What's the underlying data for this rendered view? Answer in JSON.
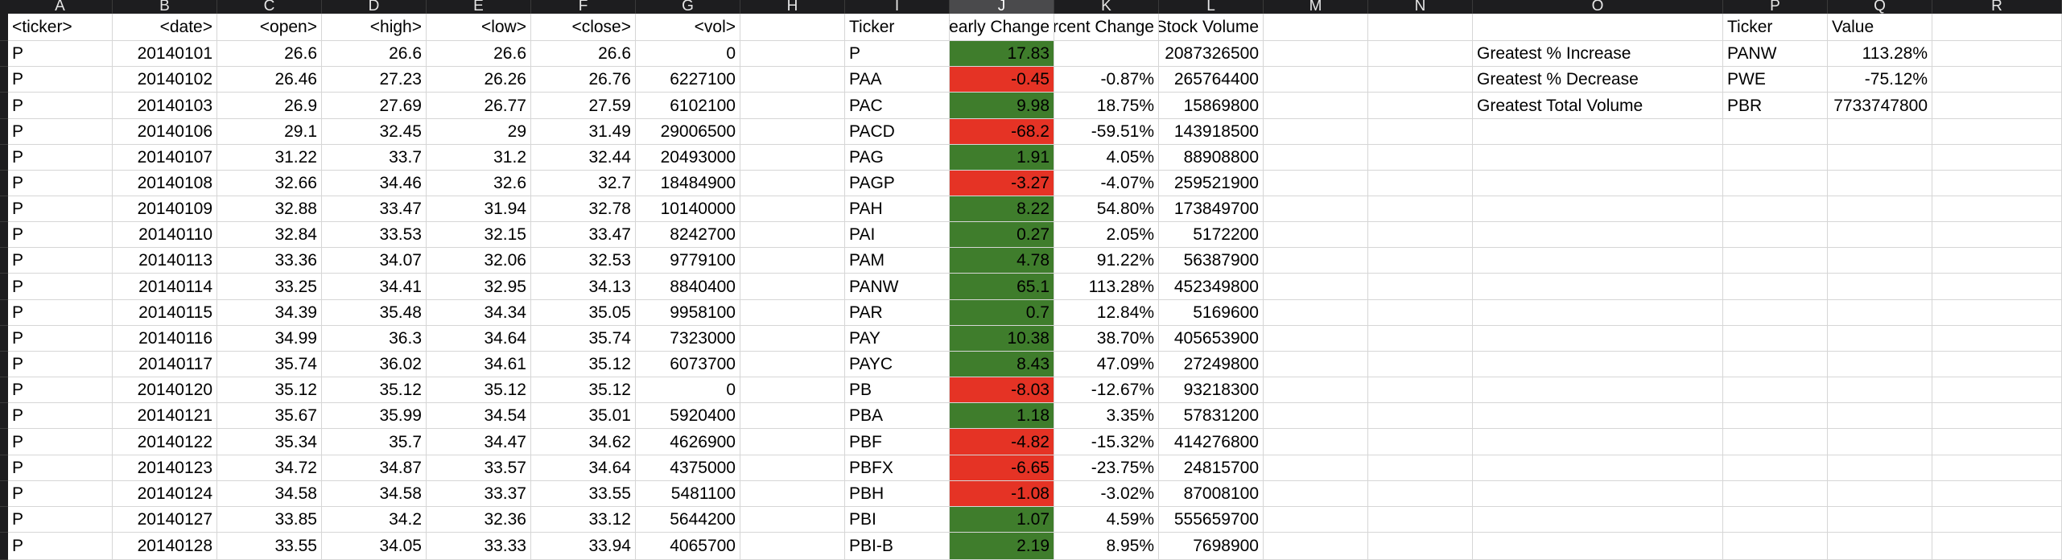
{
  "columns": [
    "A",
    "B",
    "C",
    "D",
    "E",
    "F",
    "G",
    "H",
    "I",
    "J",
    "K",
    "L",
    "M",
    "N",
    "O",
    "P",
    "Q",
    "R"
  ],
  "selected_column": "J",
  "raw_headers": [
    "<ticker>",
    "<date>",
    "<open>",
    "<high>",
    "<low>",
    "<close>",
    "<vol>"
  ],
  "raw_rows": [
    [
      "P",
      "20140101",
      "26.6",
      "26.6",
      "26.6",
      "26.6",
      "0"
    ],
    [
      "P",
      "20140102",
      "26.46",
      "27.23",
      "26.26",
      "26.76",
      "6227100"
    ],
    [
      "P",
      "20140103",
      "26.9",
      "27.69",
      "26.77",
      "27.59",
      "6102100"
    ],
    [
      "P",
      "20140106",
      "29.1",
      "32.45",
      "29",
      "31.49",
      "29006500"
    ],
    [
      "P",
      "20140107",
      "31.22",
      "33.7",
      "31.2",
      "32.44",
      "20493000"
    ],
    [
      "P",
      "20140108",
      "32.66",
      "34.46",
      "32.6",
      "32.7",
      "18484900"
    ],
    [
      "P",
      "20140109",
      "32.88",
      "33.47",
      "31.94",
      "32.78",
      "10140000"
    ],
    [
      "P",
      "20140110",
      "32.84",
      "33.53",
      "32.15",
      "33.47",
      "8242700"
    ],
    [
      "P",
      "20140113",
      "33.36",
      "34.07",
      "32.06",
      "32.53",
      "9779100"
    ],
    [
      "P",
      "20140114",
      "33.25",
      "34.41",
      "32.95",
      "34.13",
      "8840400"
    ],
    [
      "P",
      "20140115",
      "34.39",
      "35.48",
      "34.34",
      "35.05",
      "9958100"
    ],
    [
      "P",
      "20140116",
      "34.99",
      "36.3",
      "34.64",
      "35.74",
      "7323000"
    ],
    [
      "P",
      "20140117",
      "35.74",
      "36.02",
      "34.61",
      "35.12",
      "6073700"
    ],
    [
      "P",
      "20140120",
      "35.12",
      "35.12",
      "35.12",
      "35.12",
      "0"
    ],
    [
      "P",
      "20140121",
      "35.67",
      "35.99",
      "34.54",
      "35.01",
      "5920400"
    ],
    [
      "P",
      "20140122",
      "35.34",
      "35.7",
      "34.47",
      "34.62",
      "4626900"
    ],
    [
      "P",
      "20140123",
      "34.72",
      "34.87",
      "33.57",
      "34.64",
      "4375000"
    ],
    [
      "P",
      "20140124",
      "34.58",
      "34.58",
      "33.37",
      "33.55",
      "5481100"
    ],
    [
      "P",
      "20140127",
      "33.85",
      "34.2",
      "32.36",
      "33.12",
      "5644200"
    ],
    [
      "P",
      "20140128",
      "33.55",
      "34.05",
      "33.33",
      "33.94",
      "4065700"
    ]
  ],
  "summary_headers": [
    "Ticker",
    "Yearly Change",
    "Percent Change",
    "Total Stock Volume"
  ],
  "summary_rows": [
    [
      "P",
      "17.83",
      "",
      "2087326500"
    ],
    [
      "PAA",
      "-0.45",
      "-0.87%",
      "265764400"
    ],
    [
      "PAC",
      "9.98",
      "18.75%",
      "15869800"
    ],
    [
      "PACD",
      "-68.2",
      "-59.51%",
      "143918500"
    ],
    [
      "PAG",
      "1.91",
      "4.05%",
      "88908800"
    ],
    [
      "PAGP",
      "-3.27",
      "-4.07%",
      "259521900"
    ],
    [
      "PAH",
      "8.22",
      "54.80%",
      "173849700"
    ],
    [
      "PAI",
      "0.27",
      "2.05%",
      "5172200"
    ],
    [
      "PAM",
      "4.78",
      "91.22%",
      "56387900"
    ],
    [
      "PANW",
      "65.1",
      "113.28%",
      "452349800"
    ],
    [
      "PAR",
      "0.7",
      "12.84%",
      "5169600"
    ],
    [
      "PAY",
      "10.38",
      "38.70%",
      "405653900"
    ],
    [
      "PAYC",
      "8.43",
      "47.09%",
      "27249800"
    ],
    [
      "PB",
      "-8.03",
      "-12.67%",
      "93218300"
    ],
    [
      "PBA",
      "1.18",
      "3.35%",
      "57831200"
    ],
    [
      "PBF",
      "-4.82",
      "-15.32%",
      "414276800"
    ],
    [
      "PBFX",
      "-6.65",
      "-23.75%",
      "24815700"
    ],
    [
      "PBH",
      "-1.08",
      "-3.02%",
      "87008100"
    ],
    [
      "PBI",
      "1.07",
      "4.59%",
      "555659700"
    ],
    [
      "PBI-B",
      "2.19",
      "8.95%",
      "7698900"
    ]
  ],
  "greatest_headers": [
    "Ticker",
    "Value"
  ],
  "greatest_rows": [
    [
      "Greatest % Increase",
      "PANW",
      "113.28%"
    ],
    [
      "Greatest % Decrease",
      "PWE",
      "-75.12%"
    ],
    [
      "Greatest Total Volume",
      "PBR",
      "7733747800"
    ]
  ],
  "colors": {
    "positive": "#3f7d2c",
    "negative": "#e53325"
  }
}
